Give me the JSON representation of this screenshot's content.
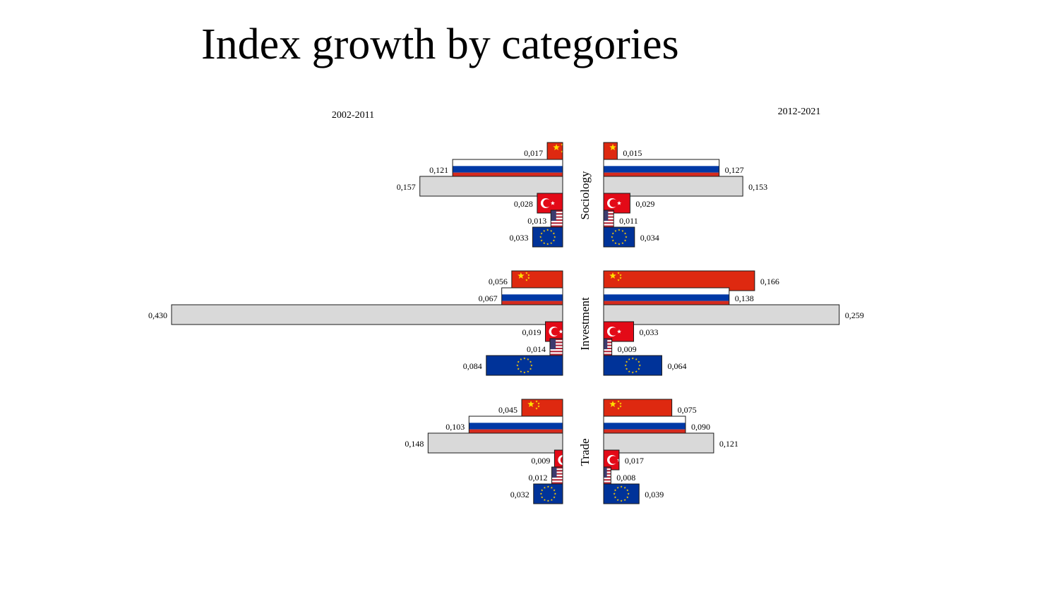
{
  "title": "Index growth by categories",
  "chart_data": {
    "type": "bar",
    "title": "Index growth by categories",
    "periods": [
      "2002-2011",
      "2012-2021"
    ],
    "countries": [
      "china-flag",
      "russia-flag",
      "blank",
      "turkey-flag",
      "usa-flag",
      "eu-flag"
    ],
    "colors": {
      "china_red": "#de2910",
      "china_star": "#ffde00",
      "russia_white": "#ffffff",
      "russia_blue": "#0039a6",
      "russia_red": "#d52b1e",
      "grey_bar": "#d9d9d9",
      "turkey_red": "#e30a17",
      "usa_red": "#b22234",
      "usa_blue": "#3c3b6e",
      "eu_blue": "#003399",
      "eu_star": "#ffcc00"
    },
    "xlim": [
      0,
      0.43
    ],
    "categories": [
      {
        "name": "Sociology",
        "left": [
          {
            "value": 0.017,
            "label": "0,017"
          },
          {
            "value": 0.121,
            "label": "0,121"
          },
          {
            "value": 0.157,
            "label": "0,157"
          },
          {
            "value": 0.028,
            "label": "0,028"
          },
          {
            "value": 0.013,
            "label": "0,013"
          },
          {
            "value": 0.033,
            "label": "0,033"
          }
        ],
        "right": [
          {
            "value": 0.015,
            "label": "0,015"
          },
          {
            "value": 0.127,
            "label": "0,127"
          },
          {
            "value": 0.153,
            "label": "0,153"
          },
          {
            "value": 0.029,
            "label": "0,029"
          },
          {
            "value": 0.011,
            "label": "0,011"
          },
          {
            "value": 0.034,
            "label": "0,034"
          }
        ]
      },
      {
        "name": "Investment",
        "left": [
          {
            "value": 0.056,
            "label": "0,056"
          },
          {
            "value": 0.067,
            "label": "0,067"
          },
          {
            "value": 0.43,
            "label": "0,430"
          },
          {
            "value": 0.019,
            "label": "0,019"
          },
          {
            "value": 0.014,
            "label": "0,014"
          },
          {
            "value": 0.084,
            "label": "0,084"
          }
        ],
        "right": [
          {
            "value": 0.166,
            "label": "0,166"
          },
          {
            "value": 0.138,
            "label": "0,138"
          },
          {
            "value": 0.259,
            "label": "0,259"
          },
          {
            "value": 0.033,
            "label": "0,033"
          },
          {
            "value": 0.009,
            "label": "0,009"
          },
          {
            "value": 0.064,
            "label": "0,064"
          }
        ]
      },
      {
        "name": "Trade",
        "left": [
          {
            "value": 0.045,
            "label": "0,045"
          },
          {
            "value": 0.103,
            "label": "0,103"
          },
          {
            "value": 0.148,
            "label": "0,148"
          },
          {
            "value": 0.009,
            "label": "0,009"
          },
          {
            "value": 0.012,
            "label": "0,012"
          },
          {
            "value": 0.032,
            "label": "0,032"
          }
        ],
        "right": [
          {
            "value": 0.075,
            "label": "0,075"
          },
          {
            "value": 0.09,
            "label": "0,090"
          },
          {
            "value": 0.121,
            "label": "0,121"
          },
          {
            "value": 0.017,
            "label": "0,017"
          },
          {
            "value": 0.008,
            "label": "0,008"
          },
          {
            "value": 0.039,
            "label": "0,039"
          }
        ]
      }
    ]
  }
}
